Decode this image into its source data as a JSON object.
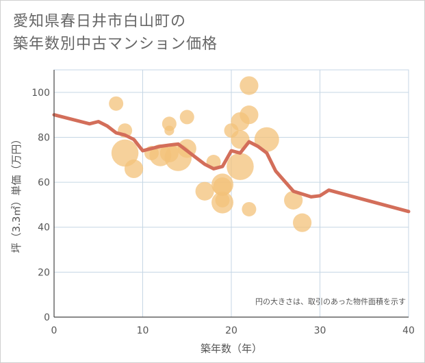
{
  "title": {
    "line1": "愛知県春日井市白山町の",
    "line2": "築年数別中古マンション価格"
  },
  "chart_data": {
    "type": "scatter",
    "xlabel": "築年数（年）",
    "ylabel": "坪（3.3㎡）単価（万円）",
    "xlim": [
      0,
      40
    ],
    "ylim": [
      0,
      110
    ],
    "xticks": [
      0,
      10,
      20,
      30,
      40
    ],
    "yticks": [
      0,
      20,
      40,
      60,
      80,
      100
    ],
    "grid": true,
    "note": "円の大きさは、取引のあった物件面積を示す",
    "colors": {
      "bubble": "#f3c27a",
      "line": "#d36e5a",
      "grid": "#c5d6e4",
      "axis": "#444444"
    },
    "bubbles": [
      {
        "x": 7,
        "y": 95,
        "size": 1
      },
      {
        "x": 8,
        "y": 83,
        "size": 1
      },
      {
        "x": 8,
        "y": 73,
        "size": 5
      },
      {
        "x": 9,
        "y": 66,
        "size": 2
      },
      {
        "x": 11,
        "y": 73,
        "size": 1
      },
      {
        "x": 12,
        "y": 72,
        "size": 3
      },
      {
        "x": 13,
        "y": 86,
        "size": 1
      },
      {
        "x": 13,
        "y": 83,
        "size": 0.3
      },
      {
        "x": 13,
        "y": 73,
        "size": 2
      },
      {
        "x": 14,
        "y": 71,
        "size": 5
      },
      {
        "x": 15,
        "y": 75,
        "size": 2
      },
      {
        "x": 15,
        "y": 89,
        "size": 1
      },
      {
        "x": 17,
        "y": 56,
        "size": 2
      },
      {
        "x": 18,
        "y": 69,
        "size": 1
      },
      {
        "x": 19,
        "y": 59,
        "size": 3
      },
      {
        "x": 19,
        "y": 58,
        "size": 2
      },
      {
        "x": 19,
        "y": 51,
        "size": 3
      },
      {
        "x": 19,
        "y": 52,
        "size": 1
      },
      {
        "x": 20,
        "y": 83,
        "size": 1
      },
      {
        "x": 21,
        "y": 87,
        "size": 2
      },
      {
        "x": 21,
        "y": 79,
        "size": 2
      },
      {
        "x": 21,
        "y": 67,
        "size": 5
      },
      {
        "x": 22,
        "y": 103,
        "size": 2
      },
      {
        "x": 22,
        "y": 90,
        "size": 2
      },
      {
        "x": 22,
        "y": 48,
        "size": 1
      },
      {
        "x": 24,
        "y": 79,
        "size": 4
      },
      {
        "x": 27,
        "y": 52,
        "size": 2
      },
      {
        "x": 28,
        "y": 42,
        "size": 2
      }
    ],
    "trend_line": {
      "x": [
        0,
        4,
        5,
        6,
        7,
        8,
        9,
        10,
        12,
        13,
        14,
        15,
        16,
        17,
        18,
        19,
        20,
        21,
        22,
        23,
        24,
        25,
        27,
        29,
        30,
        31,
        40
      ],
      "y": [
        90,
        86,
        87,
        85,
        82,
        81,
        79,
        74,
        76,
        76.5,
        77,
        74,
        71,
        68,
        66,
        67,
        74,
        73,
        78,
        76,
        73,
        65,
        56,
        53.5,
        54,
        56.5,
        47
      ]
    }
  }
}
